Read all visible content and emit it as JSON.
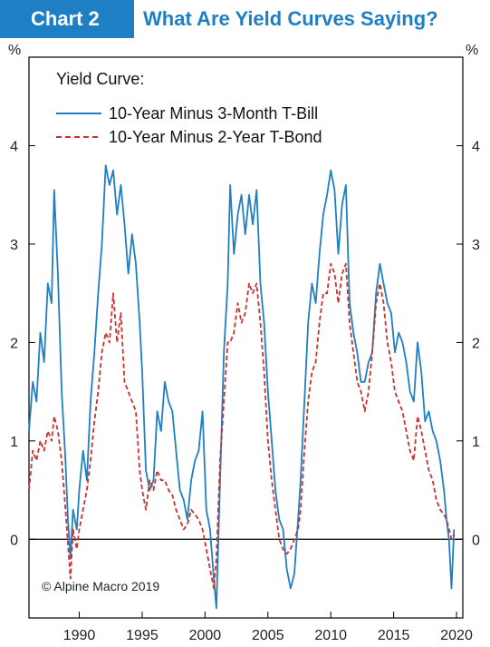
{
  "header": {
    "badge": "Chart 2",
    "title": "What Are Yield Curves Saying?",
    "accent_color": "#1f7fc4"
  },
  "chart_data": {
    "type": "line",
    "unit_left": "%",
    "unit_right": "%",
    "legend_title": "Yield Curve:",
    "legend_position": "top-left",
    "grid": false,
    "xlim": [
      1986,
      2020.5
    ],
    "ylim": [
      -0.8,
      4.9
    ],
    "x_ticks": [
      1990,
      1995,
      2000,
      2005,
      2010,
      2015,
      2020
    ],
    "x_tick_labels": [
      "1990",
      "1995",
      "2000",
      "2005",
      "2010",
      "2015",
      "2020"
    ],
    "y_ticks": [
      0,
      1,
      2,
      3,
      4
    ],
    "y_tick_labels": [
      "0",
      "1",
      "2",
      "3",
      "4"
    ],
    "zero_line": true,
    "source_note": "© Alpine Macro 2019",
    "series": [
      {
        "name": "10-Year Minus 3-Month T-Bill",
        "color": "#1f7fc4",
        "style": "solid",
        "x": [
          1986.0,
          1986.3,
          1986.6,
          1986.9,
          1987.2,
          1987.5,
          1987.8,
          1988.0,
          1988.3,
          1988.6,
          1988.9,
          1989.1,
          1989.3,
          1989.5,
          1989.8,
          1990.0,
          1990.3,
          1990.6,
          1990.9,
          1991.2,
          1991.5,
          1991.8,
          1992.1,
          1992.4,
          1992.7,
          1993.0,
          1993.3,
          1993.6,
          1993.9,
          1994.2,
          1994.5,
          1994.8,
          1995.0,
          1995.3,
          1995.6,
          1995.9,
          1996.2,
          1996.5,
          1996.8,
          1997.1,
          1997.4,
          1997.7,
          1998.0,
          1998.3,
          1998.6,
          1998.9,
          1999.2,
          1999.5,
          1999.8,
          2000.1,
          2000.4,
          2000.7,
          2000.9,
          2001.2,
          2001.5,
          2001.8,
          2002.0,
          2002.3,
          2002.6,
          2002.9,
          2003.2,
          2003.5,
          2003.8,
          2004.1,
          2004.4,
          2004.7,
          2005.0,
          2005.3,
          2005.6,
          2005.9,
          2006.2,
          2006.5,
          2006.8,
          2007.1,
          2007.4,
          2007.6,
          2007.9,
          2008.2,
          2008.5,
          2008.8,
          2009.1,
          2009.4,
          2009.7,
          2010.0,
          2010.3,
          2010.6,
          2010.9,
          2011.2,
          2011.5,
          2011.8,
          2012.1,
          2012.4,
          2012.7,
          2013.0,
          2013.3,
          2013.6,
          2013.9,
          2014.2,
          2014.5,
          2014.8,
          2015.1,
          2015.4,
          2015.7,
          2016.0,
          2016.3,
          2016.6,
          2016.9,
          2017.2,
          2017.5,
          2017.8,
          2018.1,
          2018.4,
          2018.7,
          2019.0,
          2019.2,
          2019.4,
          2019.6,
          2019.8
        ],
        "values": [
          1.1,
          1.6,
          1.4,
          2.1,
          1.8,
          2.6,
          2.4,
          3.55,
          2.7,
          1.5,
          0.8,
          0.2,
          -0.2,
          0.3,
          0.1,
          0.5,
          0.9,
          0.6,
          1.4,
          1.9,
          2.5,
          3.0,
          3.8,
          3.6,
          3.75,
          3.3,
          3.6,
          3.2,
          2.7,
          3.1,
          2.8,
          2.2,
          1.7,
          0.7,
          0.5,
          0.6,
          1.3,
          1.1,
          1.6,
          1.4,
          1.3,
          0.9,
          0.5,
          0.4,
          0.2,
          0.6,
          0.8,
          0.9,
          1.3,
          0.3,
          0.1,
          -0.4,
          -0.7,
          0.6,
          1.9,
          2.6,
          3.6,
          2.9,
          3.3,
          3.5,
          3.1,
          3.5,
          3.2,
          3.55,
          2.6,
          2.2,
          1.5,
          1.0,
          0.5,
          0.2,
          0.1,
          -0.3,
          -0.5,
          -0.35,
          0.2,
          0.6,
          1.4,
          2.2,
          2.6,
          2.4,
          2.9,
          3.3,
          3.5,
          3.75,
          3.55,
          2.9,
          3.4,
          3.6,
          2.4,
          2.1,
          1.9,
          1.6,
          1.6,
          1.8,
          1.9,
          2.5,
          2.8,
          2.6,
          2.4,
          2.3,
          1.9,
          2.1,
          2.0,
          1.8,
          1.5,
          1.4,
          2.0,
          1.7,
          1.2,
          1.3,
          1.1,
          1.0,
          0.8,
          0.5,
          0.2,
          0.0,
          -0.5,
          0.1
        ]
      },
      {
        "name": "10-Year Minus 2-Year T-Bond",
        "color": "#c83232",
        "style": "dashed",
        "x": [
          1986.0,
          1986.3,
          1986.6,
          1986.9,
          1987.2,
          1987.5,
          1987.8,
          1988.0,
          1988.3,
          1988.6,
          1988.9,
          1989.1,
          1989.3,
          1989.5,
          1989.8,
          1990.0,
          1990.3,
          1990.6,
          1990.9,
          1991.2,
          1991.5,
          1991.8,
          1992.1,
          1992.4,
          1992.7,
          1993.0,
          1993.3,
          1993.6,
          1993.9,
          1994.2,
          1994.5,
          1994.8,
          1995.0,
          1995.3,
          1995.6,
          1995.9,
          1996.2,
          1996.5,
          1996.8,
          1997.1,
          1997.4,
          1997.7,
          1998.0,
          1998.3,
          1998.6,
          1998.9,
          1999.2,
          1999.5,
          1999.8,
          2000.1,
          2000.4,
          2000.7,
          2000.9,
          2001.2,
          2001.5,
          2001.8,
          2002.0,
          2002.3,
          2002.6,
          2002.9,
          2003.2,
          2003.5,
          2003.8,
          2004.1,
          2004.4,
          2004.7,
          2005.0,
          2005.3,
          2005.6,
          2005.9,
          2006.2,
          2006.5,
          2006.8,
          2007.1,
          2007.4,
          2007.6,
          2007.9,
          2008.2,
          2008.5,
          2008.8,
          2009.1,
          2009.4,
          2009.7,
          2010.0,
          2010.3,
          2010.6,
          2010.9,
          2011.2,
          2011.5,
          2011.8,
          2012.1,
          2012.4,
          2012.7,
          2013.0,
          2013.3,
          2013.6,
          2013.9,
          2014.2,
          2014.5,
          2014.8,
          2015.1,
          2015.4,
          2015.7,
          2016.0,
          2016.3,
          2016.6,
          2016.9,
          2017.2,
          2017.5,
          2017.8,
          2018.1,
          2018.4,
          2018.7,
          2019.0,
          2019.2,
          2019.4,
          2019.6,
          2019.8
        ],
        "values": [
          0.5,
          0.9,
          0.8,
          1.0,
          0.9,
          1.1,
          1.0,
          1.25,
          1.1,
          0.8,
          0.3,
          -0.05,
          -0.4,
          0.1,
          -0.1,
          0.1,
          0.3,
          0.5,
          0.8,
          1.2,
          1.5,
          1.9,
          2.1,
          2.0,
          2.5,
          2.0,
          2.3,
          1.6,
          1.5,
          1.4,
          1.3,
          0.7,
          0.5,
          0.3,
          0.6,
          0.5,
          0.7,
          0.6,
          0.6,
          0.5,
          0.45,
          0.3,
          0.2,
          0.1,
          0.15,
          0.3,
          0.25,
          0.2,
          0.1,
          -0.1,
          -0.3,
          -0.5,
          -0.2,
          0.8,
          1.4,
          2.0,
          2.0,
          2.1,
          2.4,
          2.2,
          2.3,
          2.6,
          2.5,
          2.6,
          2.2,
          1.7,
          1.0,
          0.6,
          0.3,
          0.0,
          -0.1,
          -0.15,
          -0.1,
          0.0,
          0.1,
          0.3,
          0.9,
          1.4,
          1.7,
          1.8,
          2.2,
          2.5,
          2.5,
          2.8,
          2.7,
          2.4,
          2.7,
          2.8,
          2.2,
          1.9,
          1.6,
          1.5,
          1.3,
          1.5,
          1.9,
          2.4,
          2.6,
          2.4,
          2.0,
          1.8,
          1.5,
          1.4,
          1.3,
          1.1,
          0.9,
          0.8,
          1.25,
          1.1,
          0.9,
          0.7,
          0.6,
          0.4,
          0.3,
          0.25,
          0.2,
          0.1,
          0.0,
          0.05
        ]
      }
    ]
  }
}
